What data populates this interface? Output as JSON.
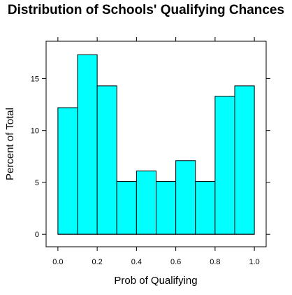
{
  "chart_data": {
    "type": "bar",
    "title": "Distribution of Schools' Qualifying Chances",
    "xlabel": "Prob of Qualifying",
    "ylabel": "Percent of Total",
    "bin_edges": [
      0.0,
      0.1,
      0.2,
      0.3,
      0.4,
      0.5,
      0.6,
      0.7,
      0.8,
      0.9,
      1.0
    ],
    "values": [
      12.2,
      17.3,
      14.3,
      5.1,
      6.1,
      5.1,
      7.1,
      5.1,
      13.3,
      14.3
    ],
    "xlim": [
      -0.06,
      1.06
    ],
    "ylim": [
      -1.2,
      18.6
    ],
    "x_ticks": [
      "0.0",
      "0.2",
      "0.4",
      "0.6",
      "0.8",
      "1.0"
    ],
    "y_ticks": [
      "0",
      "5",
      "10",
      "15"
    ],
    "bar_color": "#00FFFF",
    "grid": false
  }
}
